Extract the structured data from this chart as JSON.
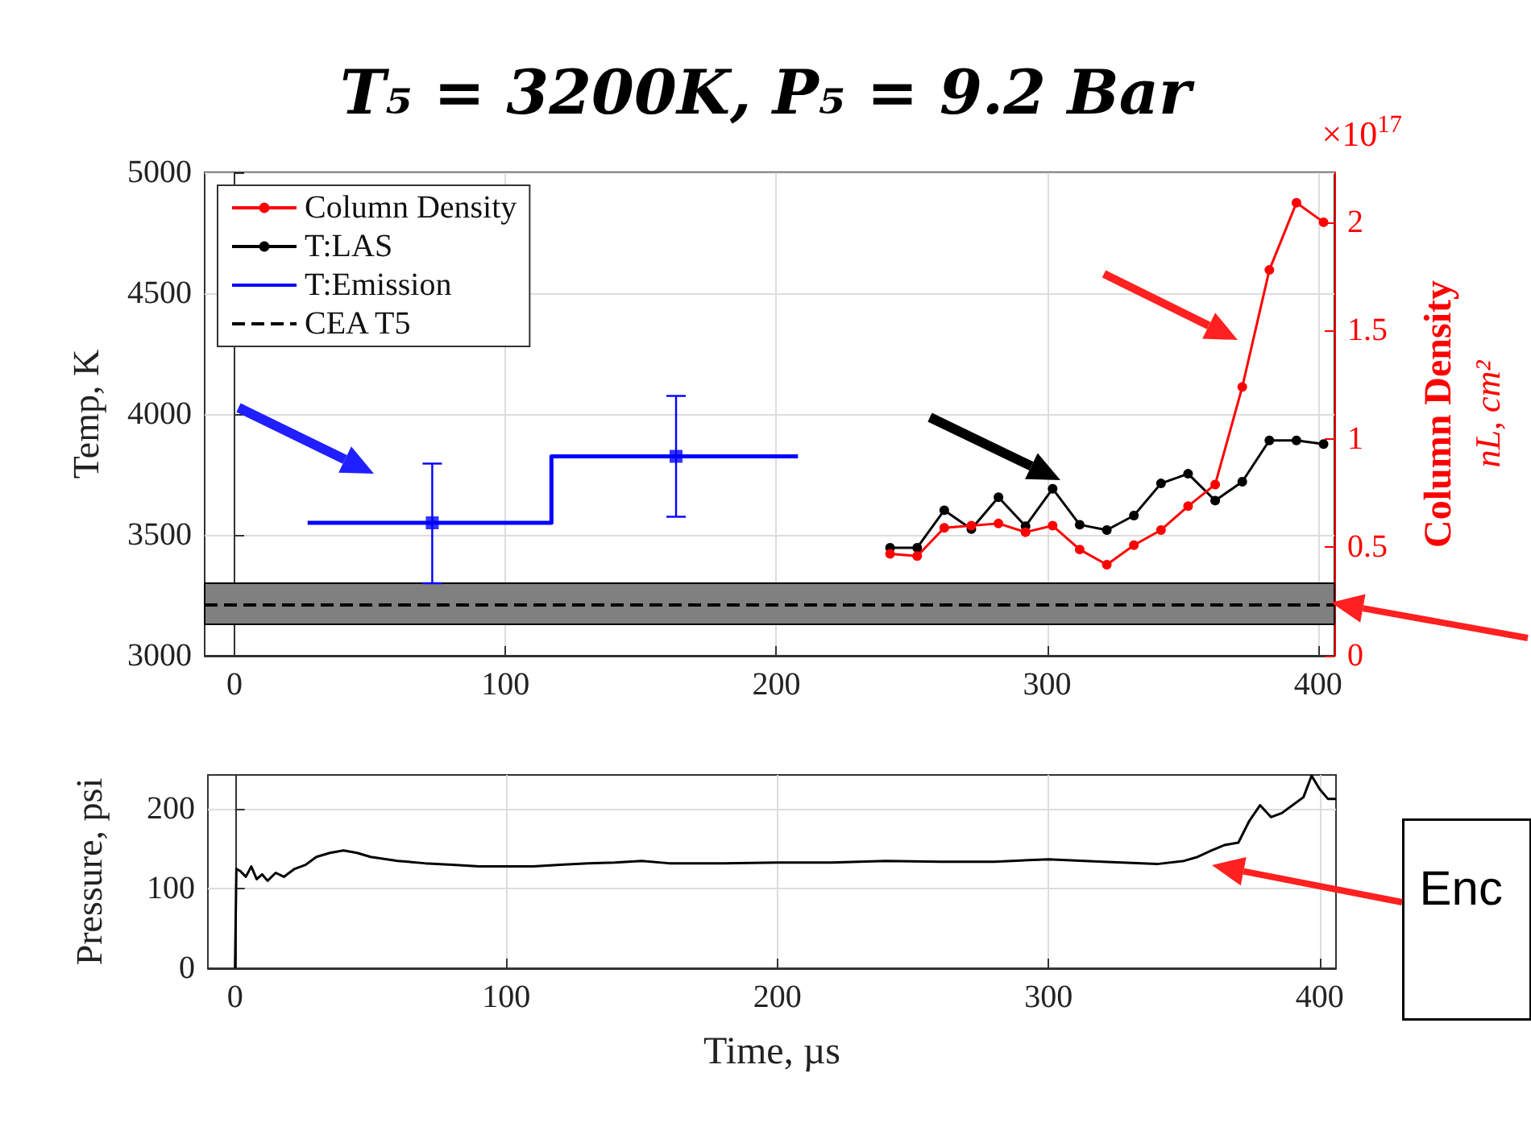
{
  "chart_data": [
    {
      "type": "line",
      "title": "T₅ = 3200K, P₅ = 9.2 Bar",
      "ylabel": "Temp, K",
      "y2label": "Column Density\nnL, cm²",
      "annotations": [
        "×10$^{17}$"
      ],
      "xlim": [
        -11,
        406
      ],
      "xticks": [
        0,
        100,
        200,
        300,
        400
      ],
      "ylim": [
        3000,
        5000
      ],
      "yticks": [
        3000,
        3500,
        4000,
        4500,
        5000
      ],
      "y2lim": [
        0,
        2.23
      ],
      "y2ticks": [
        0,
        0.5,
        1,
        1.5,
        2
      ],
      "grid": true,
      "legend": "top left",
      "ref_lines": [
        {
          "axis": "y",
          "value": 3210,
          "label": "CEA T5",
          "color": "#000000",
          "line_style": "dashed"
        }
      ],
      "bands": [
        {
          "axis": "y",
          "from": 3130,
          "to": 3300,
          "color": "#808080"
        }
      ],
      "series": [
        {
          "name": "Column Density",
          "color": "#ff0000",
          "axis": "y2",
          "marker": "circle",
          "x": [
            242,
            252,
            262,
            272,
            282,
            292,
            302,
            312,
            322,
            332,
            342,
            352,
            362,
            372,
            382,
            392,
            402
          ],
          "values": [
            0.47,
            0.46,
            0.59,
            0.6,
            0.61,
            0.57,
            0.6,
            0.49,
            0.42,
            0.51,
            0.58,
            0.69,
            0.79,
            1.24,
            1.78,
            2.09,
            2.0
          ]
        },
        {
          "name": "T:LAS",
          "color": "#000000",
          "marker": "circle",
          "x": [
            242,
            252,
            262,
            272,
            282,
            292,
            302,
            312,
            322,
            332,
            342,
            352,
            362,
            372,
            382,
            392,
            402
          ],
          "values": [
            3447,
            3447,
            3602,
            3524,
            3656,
            3536,
            3691,
            3542,
            3520,
            3580,
            3713,
            3753,
            3642,
            3720,
            3891,
            3891,
            3876
          ]
        },
        {
          "name": "T:Emission",
          "type": "step",
          "color": "#0000ff",
          "marker": "none",
          "x": [
            27,
            117,
            208
          ],
          "values": [
            3550,
            3825,
            3825
          ]
        },
        {
          "type": "scatter",
          "color": "#0000ff",
          "marker": "square",
          "x": [
            73,
            163
          ],
          "values": [
            3550,
            3825
          ],
          "errors": [
            [
              3300,
              3795
            ],
            [
              3575,
              4075
            ]
          ]
        }
      ]
    },
    {
      "type": "line",
      "xlabel": "Time, µs",
      "ylabel": "Pressure, psi",
      "annotations": [
        "Enc"
      ],
      "xlim": [
        -10,
        406
      ],
      "xticks": [
        0,
        100,
        200,
        300,
        400
      ],
      "ylim": [
        0,
        243
      ],
      "yticks": [
        0,
        100,
        200
      ],
      "grid": true,
      "series": [
        {
          "color": "#000000",
          "marker": "none",
          "x": [
            0,
            0.5,
            2,
            4,
            6,
            8,
            10,
            12,
            15,
            18,
            22,
            26,
            30,
            35,
            40,
            45,
            50,
            60,
            70,
            80,
            90,
            100,
            110,
            120,
            130,
            140,
            150,
            160,
            180,
            200,
            220,
            240,
            260,
            280,
            300,
            320,
            340,
            350,
            355,
            360,
            365,
            370,
            374,
            378,
            382,
            386,
            390,
            394,
            397,
            400,
            403,
            406
          ],
          "values": [
            0,
            125,
            122,
            115,
            128,
            112,
            118,
            110,
            120,
            115,
            125,
            130,
            140,
            145,
            148,
            145,
            140,
            135,
            132,
            130,
            128,
            128,
            128,
            130,
            132,
            133,
            135,
            132,
            132,
            133,
            133,
            135,
            134,
            134,
            137,
            134,
            131,
            135,
            140,
            148,
            155,
            158,
            185,
            205,
            190,
            195,
            205,
            215,
            242,
            225,
            213,
            213
          ]
        }
      ]
    }
  ]
}
